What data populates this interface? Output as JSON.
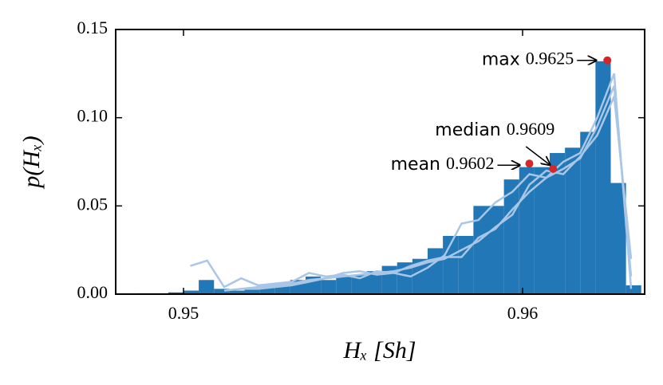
{
  "chart_data": {
    "type": "histogram",
    "xlabel": "Hₓ [Sh]",
    "ylabel": "p(Hₓ)",
    "xlim": [
      0.948,
      0.9636
    ],
    "ylim": [
      0,
      0.15
    ],
    "xticks": [
      0.95,
      0.96
    ],
    "yticks": [
      {
        "value": 0,
        "label": "0.00"
      },
      0.05,
      {
        "value": 0.1,
        "label": "0.10"
      },
      0.15
    ],
    "bins": [
      0.9482,
      0.94865,
      0.9491,
      0.94955,
      0.95,
      0.95045,
      0.9509,
      0.95135,
      0.9518,
      0.95225,
      0.9527,
      0.95315,
      0.9536,
      0.95405,
      0.9545,
      0.95495,
      0.9554,
      0.95585,
      0.9563,
      0.95675,
      0.9572,
      0.95765,
      0.9581,
      0.95855,
      0.959,
      0.95945,
      0.9599,
      0.96035,
      0.9608,
      0.96125,
      0.9617,
      0.96215,
      0.9626,
      0.96305,
      0.9635
    ],
    "values": [
      0,
      0.0005,
      0.0005,
      0.001,
      0.002,
      0.008,
      0.003,
      0.002,
      0.003,
      0.004,
      0.005,
      0.008,
      0.01,
      0.008,
      0.01,
      0.011,
      0.013,
      0.016,
      0.018,
      0.02,
      0.026,
      0.033,
      0.033,
      0.05,
      0.05,
      0.065,
      0.072,
      0.072,
      0.08,
      0.083,
      0.092,
      0.132,
      0.063,
      0.005
    ],
    "color": "#2277b6",
    "lines": {
      "color": "#a9c6e6",
      "x": [
        0.9502,
        0.9507,
        0.9512,
        0.9517,
        0.9522,
        0.9527,
        0.9532,
        0.9537,
        0.9542,
        0.9547,
        0.9552,
        0.9557,
        0.9562,
        0.9567,
        0.9572,
        0.9577,
        0.9582,
        0.9587,
        0.9592,
        0.9597,
        0.9602,
        0.9607,
        0.9612,
        0.9617,
        0.9622,
        0.9627,
        0.9632
      ],
      "series": [
        [
          0.016,
          0.019,
          0.004,
          0.009,
          0.005,
          0.006,
          0.007,
          0.012,
          0.01,
          0.011,
          0.009,
          0.013,
          0.012,
          0.01,
          0.015,
          0.022,
          0.04,
          0.042,
          0.052,
          0.058,
          0.068,
          0.066,
          0.075,
          0.08,
          0.1,
          0.125,
          0.003
        ],
        [
          null,
          null,
          0.002,
          0.003,
          0.004,
          0.005,
          0.006,
          0.008,
          0.009,
          0.01,
          0.011,
          0.012,
          0.013,
          0.015,
          0.018,
          0.02,
          0.025,
          0.03,
          0.038,
          0.045,
          0.062,
          0.07,
          0.068,
          0.078,
          0.09,
          0.112,
          0.02
        ],
        [
          null,
          null,
          null,
          0.003,
          0.003,
          0.004,
          0.005,
          0.007,
          0.009,
          0.012,
          0.013,
          0.011,
          0.012,
          0.016,
          0.019,
          0.021,
          0.021,
          0.032,
          0.037,
          0.048,
          0.058,
          0.066,
          0.071,
          0.077,
          0.095,
          0.118,
          0.01
        ]
      ]
    },
    "point_color": "#d62728",
    "annotations": [
      {
        "text": "max",
        "value": 0.9625,
        "y": 0.1325
      },
      {
        "text": "median",
        "value": 0.9609,
        "y": 0.071
      },
      {
        "text": "mean",
        "value": 0.9602,
        "y": 0.074
      }
    ]
  }
}
